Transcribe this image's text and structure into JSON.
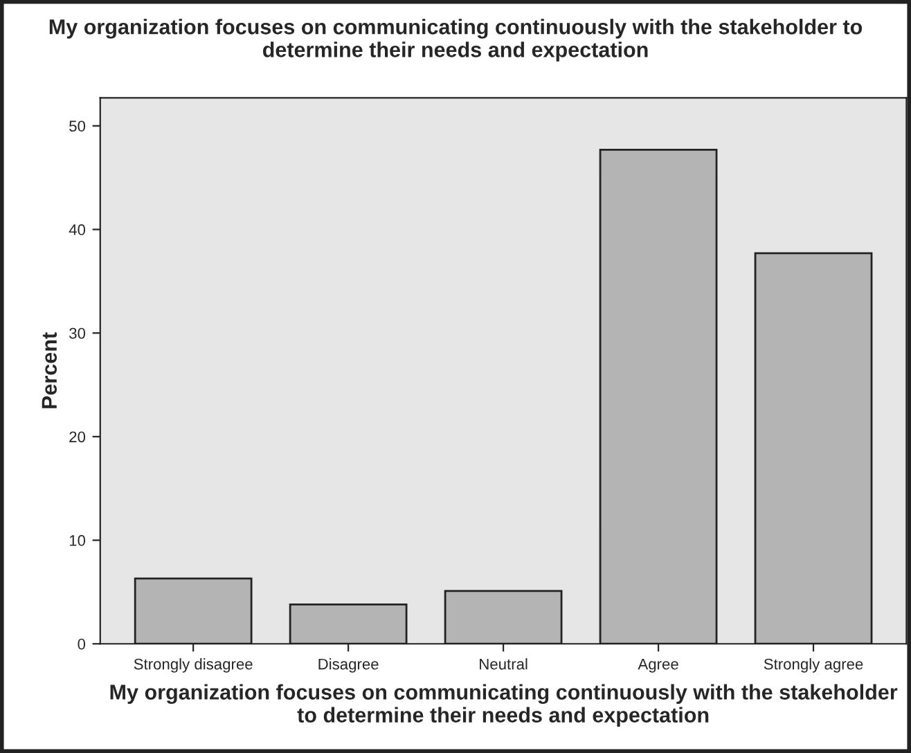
{
  "chart_data": {
    "type": "bar",
    "title": "My organization focuses on communicating continuously with the stakeholder to\ndetermine their needs and expectation",
    "xlabel": "My organization focuses on communicating continuously with the stakeholder\nto determine their needs and expectation",
    "ylabel": "Percent",
    "categories": [
      "Strongly disagree",
      "Disagree",
      "Neutral",
      "Agree",
      "Strongly agree"
    ],
    "values": [
      6.3,
      3.8,
      5.1,
      47.7,
      37.7
    ],
    "color": "#b4b4b4",
    "ylim": [
      0,
      52.7
    ],
    "yticks": [
      0,
      10,
      20,
      30,
      40,
      50
    ],
    "grid": false
  }
}
